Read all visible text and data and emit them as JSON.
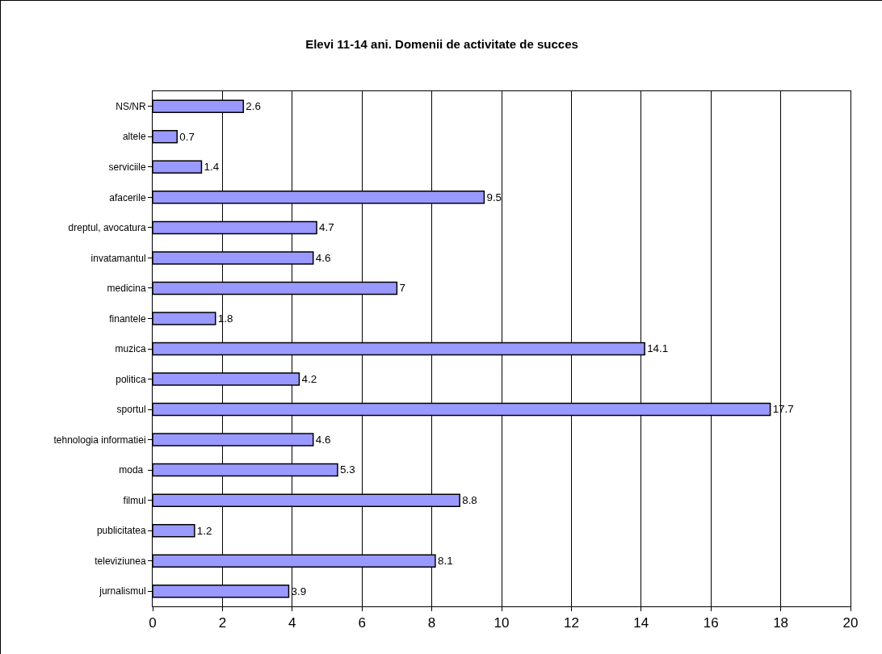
{
  "chart_data": {
    "type": "bar",
    "orientation": "horizontal",
    "title": "Elevi 11-14 ani. Domenii de activitate de succes",
    "categories": [
      "NS/NR",
      "altele",
      "serviciile",
      "afacerile",
      "dreptul, avocatura",
      "invatamantul",
      "medicina",
      "finantele",
      "muzica",
      "politica",
      "sportul",
      "tehnologia informatiei",
      "moda ",
      "filmul",
      "publicitatea",
      "televiziunea",
      "jurnalismul"
    ],
    "values": [
      2.6,
      0.7,
      1.4,
      9.5,
      4.7,
      4.6,
      7,
      1.8,
      14.1,
      4.2,
      17.7,
      4.6,
      5.3,
      8.8,
      1.2,
      8.1,
      3.9
    ],
    "color": "#9999ff",
    "xlim": [
      0,
      20
    ],
    "xticks": [
      0,
      2,
      4,
      6,
      8,
      10,
      12,
      14,
      16,
      18,
      20
    ],
    "grid": "x",
    "data_labels": true
  }
}
